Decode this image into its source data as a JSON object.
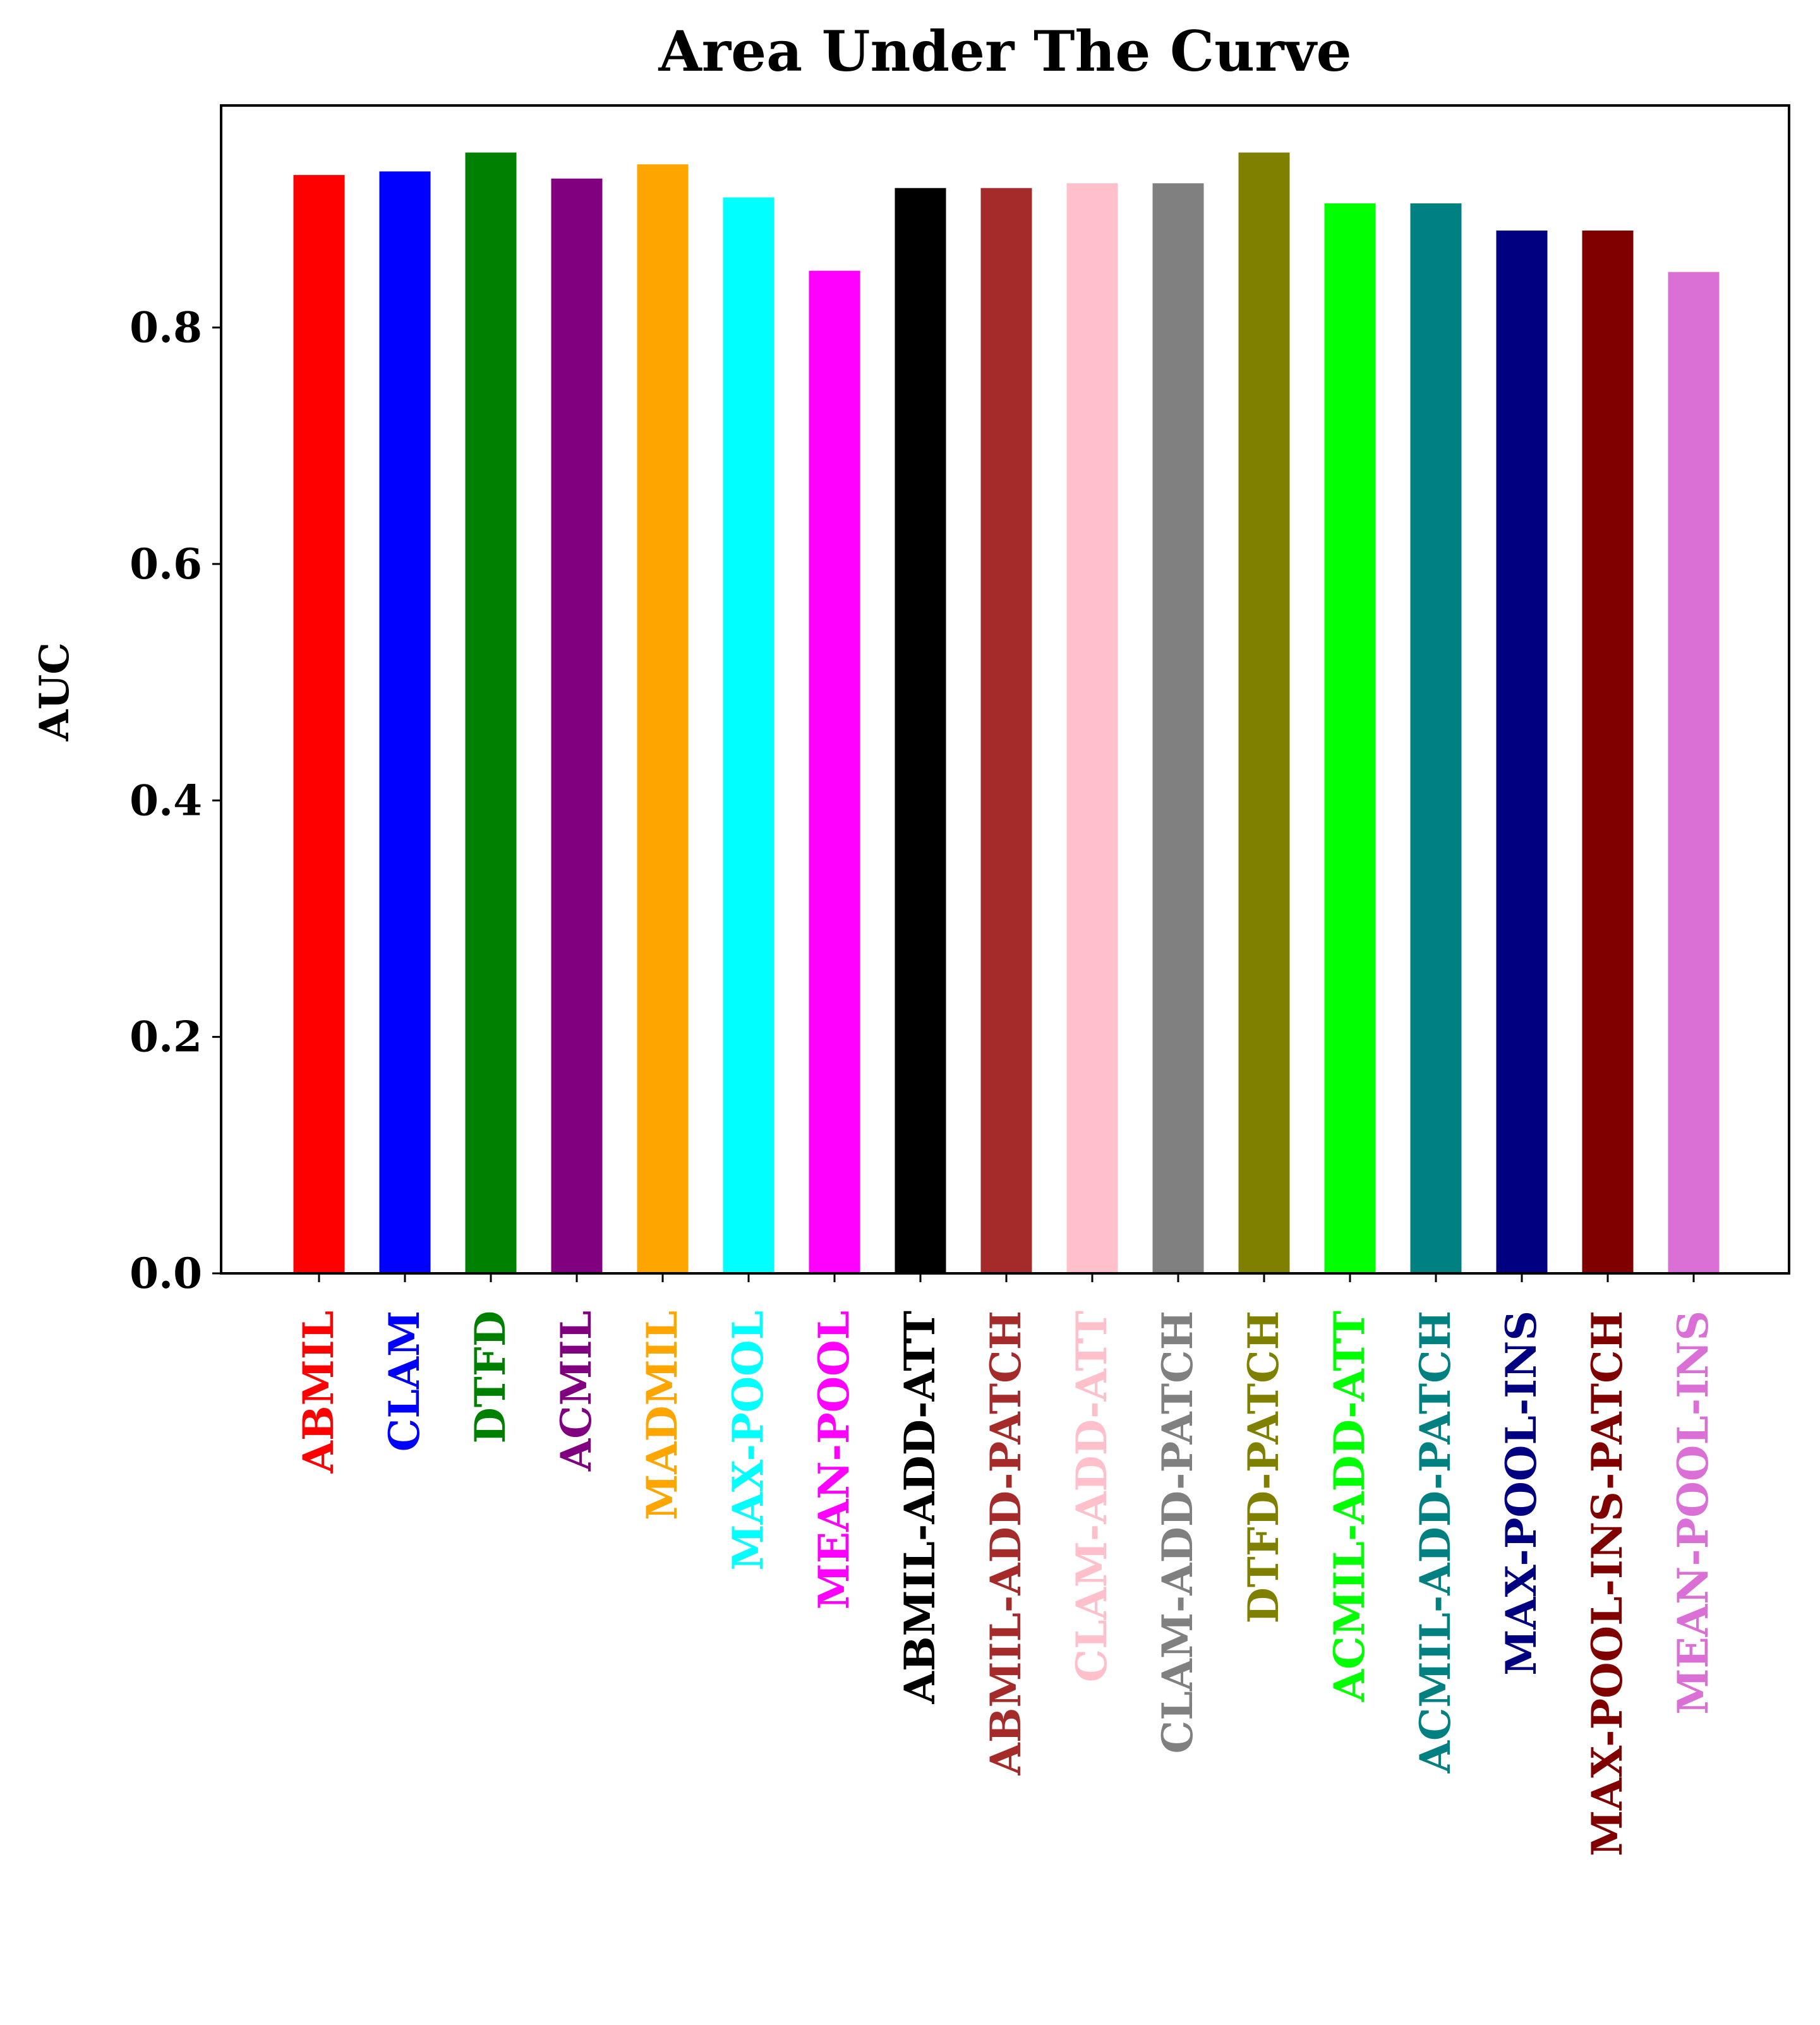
{
  "chart_data": {
    "type": "bar",
    "title": "Area Under The Curve",
    "xlabel": "",
    "ylabel": "AUC",
    "ylim": [
      0,
      0.9878
    ],
    "yticks": [
      "0.0",
      "0.2",
      "0.4",
      "0.6",
      "0.8"
    ],
    "ytick_values": [
      0.0,
      0.2,
      0.4,
      0.6,
      0.8
    ],
    "grid": false,
    "legend": "none",
    "categories": [
      "ABMIL",
      "CLAM",
      "DTFD",
      "ACMIL",
      "MADMIL",
      "MAX-POOL",
      "MEAN-POOL",
      "ABMIL-ADD-ATT",
      "ABMIL-ADD-PATCH",
      "CLAM-ADD-ATT",
      "CLAM-ADD-PATCH",
      "DTFD-PATCH",
      "ACMIL-ADD-ATT",
      "ACMIL-ADD-PATCH",
      "MAX-POOL-INS",
      "MAX-POOL-INS-PATCH",
      "MEAN-POOL-INS"
    ],
    "values": [
      0.929,
      0.932,
      0.948,
      0.926,
      0.938,
      0.91,
      0.848,
      0.918,
      0.918,
      0.922,
      0.922,
      0.948,
      0.905,
      0.905,
      0.882,
      0.882,
      0.847
    ],
    "colors": [
      "#ff0000",
      "#0000ff",
      "#008000",
      "#800080",
      "#ffa500",
      "#00ffff",
      "#ff00ff",
      "#000000",
      "#a52a2a",
      "#ffc0cb",
      "#808080",
      "#808000",
      "#00ff00",
      "#008080",
      "#000080",
      "#800000",
      "#da70d6"
    ]
  }
}
